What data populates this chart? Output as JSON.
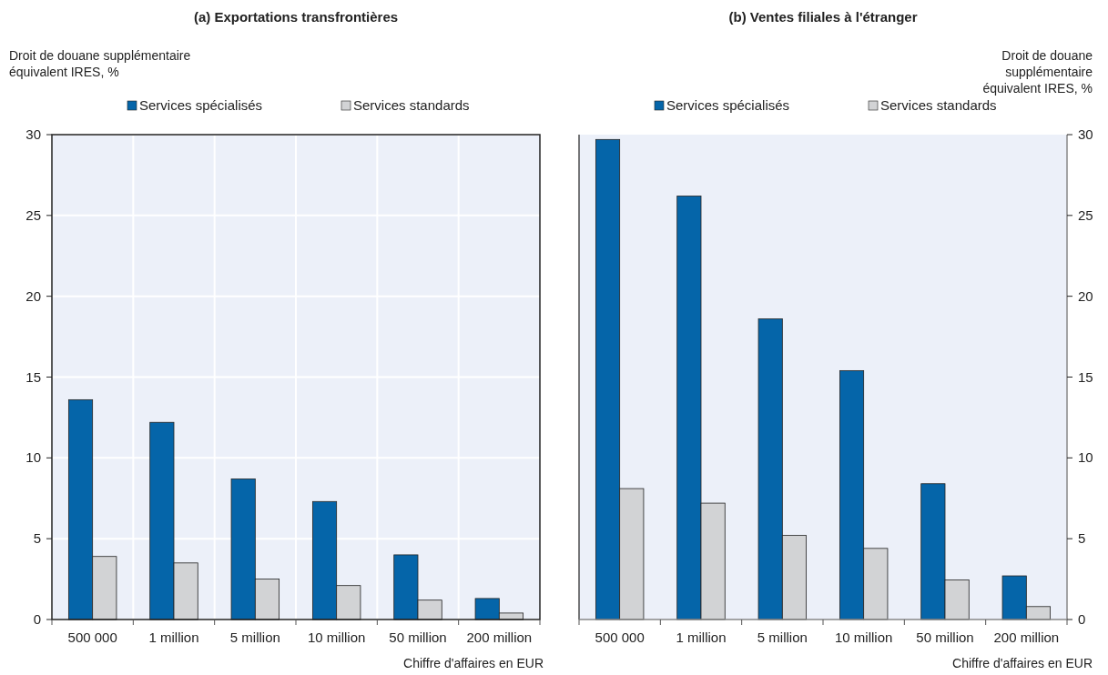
{
  "chart_data": [
    {
      "type": "bar",
      "title": "(a) Exportations transfrontières",
      "ylabel": "Droit de douane  supplémentaire équivalent IRES, %",
      "xlabel": "Chiffre d'affaires en EUR",
      "categories": [
        "500 000",
        "1 million",
        "5 million",
        "10 million",
        "50 million",
        "200 million"
      ],
      "series": [
        {
          "name": "Services spécialisés",
          "color": "#0565a9",
          "values": [
            13.6,
            12.2,
            8.7,
            7.3,
            4.0,
            1.3
          ]
        },
        {
          "name": "Services standards",
          "color": "#d2d3d5",
          "values": [
            3.9,
            3.5,
            2.5,
            2.1,
            1.2,
            0.4
          ]
        }
      ],
      "ylim": [
        0,
        30
      ],
      "yticks": [
        0,
        5,
        10,
        15,
        20,
        25,
        30
      ],
      "grid": true,
      "legend": "top"
    },
    {
      "type": "bar",
      "title": "(b) Ventes filiales à l'étranger",
      "y2label": "Droit de douane supplémentaire équivalent IRES, %",
      "xlabel": "Chiffre d'affaires en EUR",
      "categories": [
        "500 000",
        "1 million",
        "5 million",
        "10 million",
        "50 million",
        "200 million"
      ],
      "series": [
        {
          "name": "Services spécialisés",
          "color": "#0565a9",
          "axis": "y2",
          "values": [
            29.7,
            26.2,
            18.6,
            15.4,
            8.4,
            2.7
          ]
        },
        {
          "name": "Services standards",
          "color": "#d2d3d5",
          "axis": "y2",
          "values": [
            8.1,
            7.2,
            5.2,
            4.4,
            2.45,
            0.8
          ]
        }
      ],
      "y2lim": [
        0,
        30
      ],
      "y2ticks": [
        0,
        5,
        10,
        15,
        20,
        25,
        30
      ],
      "grid": false,
      "legend": "top"
    }
  ]
}
